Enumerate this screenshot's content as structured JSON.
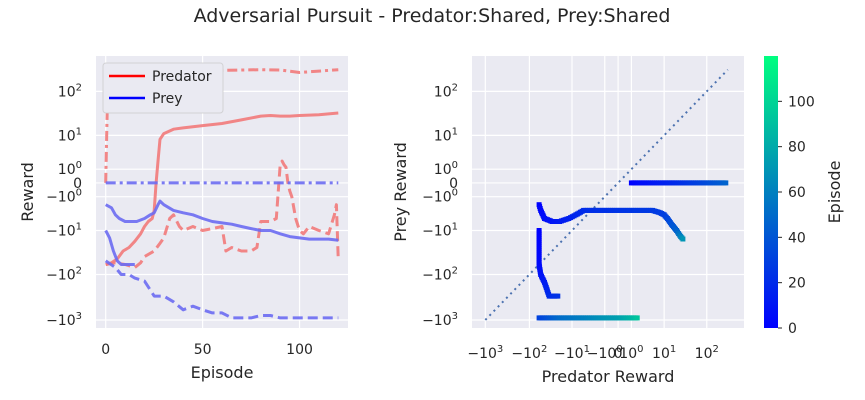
{
  "figure": {
    "title": "Adversarial Pursuit - Predator:Shared, Prey:Shared"
  },
  "chart_data": [
    {
      "type": "line",
      "xlabel": "Episode",
      "ylabel": "Reward",
      "xlim": [
        -5,
        125
      ],
      "x_ticks": [
        0,
        50,
        100
      ],
      "y_scale": "symlog",
      "y_ticks": [
        "10^2",
        "10^1",
        "10^0",
        "0",
        "-10^0",
        "-10^1",
        "-10^2",
        "-10^3"
      ],
      "grid": true,
      "legend": {
        "placement": "top-left",
        "entries": [
          {
            "label": "Predator",
            "color": "#ff0000"
          },
          {
            "label": "Prey",
            "color": "#0000ff"
          }
        ]
      },
      "series": [
        {
          "team": "Predator",
          "style": "solid",
          "color": "#f27a7a",
          "points": [
            [
              0,
              -60
            ],
            [
              3,
              -55
            ],
            [
              6,
              -45
            ],
            [
              9,
              -30
            ],
            [
              12,
              -25
            ],
            [
              15,
              -18
            ],
            [
              18,
              -12
            ],
            [
              20,
              -8
            ],
            [
              22,
              -6
            ],
            [
              24,
              -5
            ],
            [
              25,
              -3
            ],
            [
              26,
              0
            ],
            [
              27,
              2
            ],
            [
              28,
              8
            ],
            [
              30,
              11
            ],
            [
              35,
              14
            ],
            [
              40,
              15
            ],
            [
              45,
              16
            ],
            [
              50,
              17
            ],
            [
              60,
              19
            ],
            [
              70,
              23
            ],
            [
              80,
              28
            ],
            [
              85,
              29
            ],
            [
              90,
              28
            ],
            [
              95,
              28
            ],
            [
              100,
              29
            ],
            [
              110,
              30
            ],
            [
              120,
              33
            ]
          ]
        },
        {
          "team": "Predator",
          "style": "dashdot",
          "color": "#f27a7a",
          "points": [
            [
              0,
              0
            ],
            [
              1,
              100
            ],
            [
              2,
              300
            ],
            [
              10,
              300
            ],
            [
              20,
              300
            ],
            [
              30,
              300
            ],
            [
              50,
              300
            ],
            [
              60,
              290
            ],
            [
              80,
              300
            ],
            [
              90,
              295
            ],
            [
              100,
              260
            ],
            [
              110,
              280
            ],
            [
              120,
              300
            ]
          ]
        },
        {
          "team": "Predator",
          "style": "dashed",
          "color": "#f27a7a",
          "points": [
            [
              0,
              -60
            ],
            [
              5,
              -55
            ],
            [
              10,
              -60
            ],
            [
              15,
              -70
            ],
            [
              18,
              -55
            ],
            [
              20,
              -40
            ],
            [
              25,
              -30
            ],
            [
              28,
              -20
            ],
            [
              30,
              -15
            ],
            [
              33,
              -5
            ],
            [
              35,
              -4
            ],
            [
              38,
              -8
            ],
            [
              40,
              -10
            ],
            [
              45,
              -8
            ],
            [
              50,
              -10
            ],
            [
              55,
              -9
            ],
            [
              60,
              -8
            ],
            [
              62,
              -30
            ],
            [
              65,
              -25
            ],
            [
              70,
              -30
            ],
            [
              75,
              -30
            ],
            [
              78,
              -25
            ],
            [
              80,
              -6
            ],
            [
              85,
              -6
            ],
            [
              88,
              -5
            ],
            [
              90,
              1.5
            ],
            [
              91,
              2
            ],
            [
              92,
              1.5
            ],
            [
              93,
              1.2
            ],
            [
              94,
              0
            ],
            [
              95,
              -0.5
            ],
            [
              96,
              -1
            ],
            [
              98,
              -5
            ],
            [
              100,
              -10
            ],
            [
              102,
              -12
            ],
            [
              105,
              -8
            ],
            [
              110,
              -10
            ],
            [
              115,
              -12
            ],
            [
              118,
              -4
            ],
            [
              119,
              -2
            ],
            [
              120,
              -50
            ]
          ]
        },
        {
          "team": "Prey",
          "style": "dashdot",
          "color": "#6b6bf2",
          "points": [
            [
              0,
              0
            ],
            [
              120,
              0
            ]
          ]
        },
        {
          "team": "Prey",
          "style": "solid",
          "color": "#6b6bf2",
          "points": [
            [
              0,
              -2
            ],
            [
              3,
              -2.5
            ],
            [
              5,
              -4
            ],
            [
              7,
              -5
            ],
            [
              10,
              -6
            ],
            [
              13,
              -6
            ],
            [
              16,
              -6
            ],
            [
              20,
              -5
            ],
            [
              23,
              -4
            ],
            [
              25,
              -3.5
            ],
            [
              27,
              -2
            ],
            [
              28,
              -1.5
            ],
            [
              30,
              -2
            ],
            [
              35,
              -3
            ],
            [
              40,
              -3.5
            ],
            [
              45,
              -4
            ],
            [
              50,
              -5
            ],
            [
              55,
              -6
            ],
            [
              60,
              -6.5
            ],
            [
              65,
              -7
            ],
            [
              70,
              -8
            ],
            [
              75,
              -9
            ],
            [
              80,
              -10
            ],
            [
              85,
              -10
            ],
            [
              90,
              -12
            ],
            [
              95,
              -14
            ],
            [
              100,
              -15
            ],
            [
              105,
              -16
            ],
            [
              110,
              -16
            ],
            [
              115,
              -16
            ],
            [
              120,
              -17
            ]
          ]
        },
        {
          "team": "Prey",
          "style": "solid",
          "color": "#6b6bf2",
          "points": [
            [
              0,
              -10
            ],
            [
              2,
              -15
            ],
            [
              4,
              -30
            ],
            [
              6,
              -50
            ],
            [
              8,
              -60
            ],
            [
              10,
              -60
            ],
            [
              15,
              -60
            ]
          ]
        },
        {
          "team": "Prey",
          "style": "dashed",
          "color": "#6b6bf2",
          "points": [
            [
              0,
              -50
            ],
            [
              5,
              -70
            ],
            [
              8,
              -100
            ],
            [
              12,
              -100
            ],
            [
              15,
              -120
            ],
            [
              20,
              -140
            ],
            [
              25,
              -300
            ],
            [
              30,
              -300
            ],
            [
              35,
              -400
            ],
            [
              40,
              -600
            ],
            [
              45,
              -500
            ],
            [
              50,
              -600
            ],
            [
              55,
              -700
            ],
            [
              60,
              -700
            ],
            [
              65,
              -900
            ],
            [
              70,
              -900
            ],
            [
              75,
              -900
            ],
            [
              80,
              -800
            ],
            [
              85,
              -800
            ],
            [
              90,
              -900
            ],
            [
              95,
              -900
            ],
            [
              100,
              -900
            ],
            [
              105,
              -900
            ],
            [
              110,
              -900
            ],
            [
              115,
              -900
            ],
            [
              120,
              -900
            ]
          ]
        }
      ]
    },
    {
      "type": "scatter",
      "xlabel": "Predator Reward",
      "ylabel": "Prey Reward",
      "x_scale": "symlog",
      "y_scale": "symlog",
      "x_ticks": [
        "-10^3",
        "-10^2",
        "-10^1",
        "-10^0",
        "0",
        "10^0",
        "10^1",
        "10^2"
      ],
      "y_ticks": [
        "10^2",
        "10^1",
        "10^0",
        "0",
        "-10^0",
        "-10^1",
        "-10^2",
        "-10^3"
      ],
      "grid": true,
      "reference_line": {
        "style": "dotted",
        "color": "#4c72b0",
        "from": [
          -1000,
          -1000
        ],
        "to": [
          300,
          300
        ]
      },
      "colorbar": {
        "label": "Episode",
        "range": [
          0,
          120
        ],
        "ticks": [
          0,
          20,
          40,
          60,
          80,
          100
        ],
        "colormap": "winter"
      },
      "series": [
        {
          "name": "",
          "points_xy_episode": [
            [
              1,
              0,
              0
            ],
            [
              2,
              0,
              5
            ],
            [
              5,
              0,
              10
            ],
            [
              10,
              0,
              15
            ],
            [
              20,
              0,
              20
            ],
            [
              50,
              0,
              28
            ],
            [
              100,
              0,
              35
            ],
            [
              200,
              0,
              42
            ],
            [
              300,
              0,
              48
            ]
          ]
        },
        {
          "name": "",
          "points_xy_episode": [
            [
              -60,
              -2,
              0
            ],
            [
              -55,
              -3,
              3
            ],
            [
              -45,
              -5,
              6
            ],
            [
              -30,
              -6,
              9
            ],
            [
              -20,
              -6,
              12
            ],
            [
              -12,
              -5,
              15
            ],
            [
              -8,
              -4,
              18
            ],
            [
              -5,
              -3,
              20
            ],
            [
              -3,
              -3,
              22
            ],
            [
              0,
              -3,
              24
            ],
            [
              0.5,
              -3,
              25
            ],
            [
              2,
              -3,
              26
            ],
            [
              5,
              -3,
              27
            ],
            [
              8,
              -3.5,
              28
            ],
            [
              10,
              -4,
              29
            ],
            [
              12,
              -5,
              32
            ],
            [
              15,
              -7,
              38
            ],
            [
              20,
              -10,
              45
            ],
            [
              25,
              -14,
              60
            ],
            [
              30,
              -17,
              75
            ]
          ]
        },
        {
          "name": "",
          "points_xy_episode": [
            [
              -60,
              -10,
              0
            ],
            [
              -60,
              -60,
              4
            ],
            [
              -55,
              -100,
              8
            ],
            [
              -45,
              -150,
              12
            ],
            [
              -35,
              -300,
              20
            ],
            [
              -20,
              -300,
              24
            ]
          ]
        },
        {
          "name": "",
          "points_xy_episode": [
            [
              -60,
              -900,
              30
            ],
            [
              -20,
              -900,
              50
            ],
            [
              -5,
              -900,
              60
            ],
            [
              -1,
              -900,
              70
            ],
            [
              0,
              -900,
              75
            ],
            [
              1,
              -900,
              85
            ],
            [
              2,
              -900,
              95
            ]
          ]
        }
      ]
    }
  ]
}
